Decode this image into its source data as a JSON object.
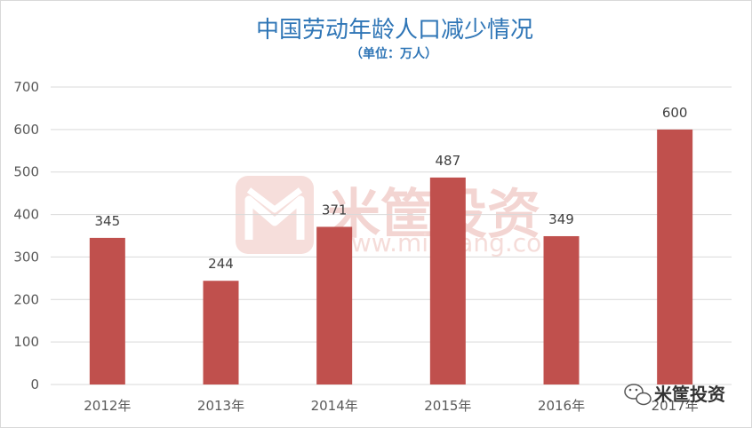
{
  "chart_data": {
    "type": "bar",
    "title": "中国劳动年龄人口减少情况",
    "subtitle": "（单位：万人）",
    "categories": [
      "2012年",
      "2013年",
      "2014年",
      "2015年",
      "2016年",
      "2017年"
    ],
    "values": [
      345,
      244,
      371,
      487,
      349,
      600
    ],
    "data_labels": [
      "345",
      "244",
      "371",
      "487",
      "349",
      "600"
    ],
    "ylim": [
      0,
      700
    ],
    "yticks": [
      0,
      100,
      200,
      300,
      400,
      500,
      600,
      700
    ],
    "grid": true,
    "bar_color": "#C0504D",
    "xlabel": "",
    "ylabel": ""
  },
  "watermark": {
    "text": "米筐投资",
    "url": "www.mikuang.com",
    "icon": "mikuang-logo-icon"
  },
  "brand": {
    "text": "米筐投资",
    "icon": "wechat-icon"
  },
  "colors": {
    "title": "#2E75B6",
    "grid": "#D9D9D9",
    "watermark": "#F3D5D2"
  }
}
